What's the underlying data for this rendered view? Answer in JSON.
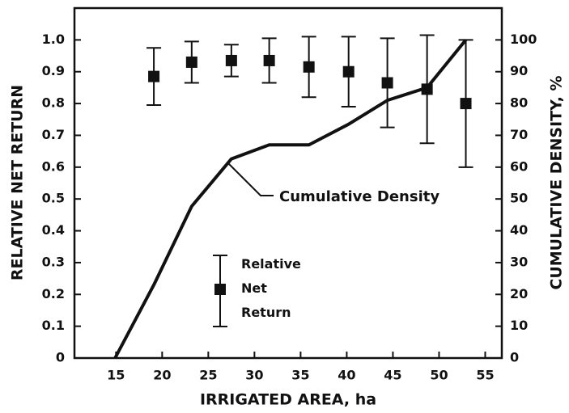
{
  "chart_data": {
    "type": "scatter",
    "xlabel": "IRRIGATED AREA, ha",
    "ylabel": "RELATIVE NET RETURN",
    "y2label": "CUMULATIVE DENSITY, %",
    "xlim": [
      10.5,
      56.8
    ],
    "xticks": [
      15,
      20,
      25,
      30,
      35,
      40,
      45,
      50,
      55
    ],
    "ylim": [
      0,
      1.1
    ],
    "yticks": [
      0,
      0.1,
      0.2,
      0.3,
      0.4,
      0.5,
      0.6,
      0.7,
      0.8,
      0.9,
      {
        "value": 1.0,
        "label": "1.0"
      }
    ],
    "y2lim": [
      0,
      110
    ],
    "y2ticks": [
      0,
      10,
      20,
      30,
      40,
      50,
      60,
      70,
      80,
      90,
      100
    ],
    "color": "#111111",
    "series": [
      {
        "name": "Relative Net Return",
        "kind": "errorbar",
        "x": [
          19.1,
          23.2,
          27.5,
          31.6,
          35.9,
          40.2,
          44.4,
          48.7,
          52.9
        ],
        "values": [
          0.885,
          0.93,
          0.935,
          0.935,
          0.915,
          0.9,
          0.865,
          0.845,
          0.8
        ],
        "errors": [
          0.09,
          0.065,
          0.05,
          0.07,
          0.095,
          0.11,
          0.14,
          0.17,
          0.2
        ]
      },
      {
        "name": "Cumulative Density",
        "kind": "line",
        "axis": "y2",
        "x": [
          14.9,
          19.1,
          23.2,
          27.5,
          31.6,
          35.9,
          40.2,
          44.4,
          48.7,
          52.9
        ],
        "values": [
          0,
          23,
          47.7,
          62.6,
          67,
          67,
          73.5,
          81,
          85,
          100
        ]
      }
    ]
  }
}
